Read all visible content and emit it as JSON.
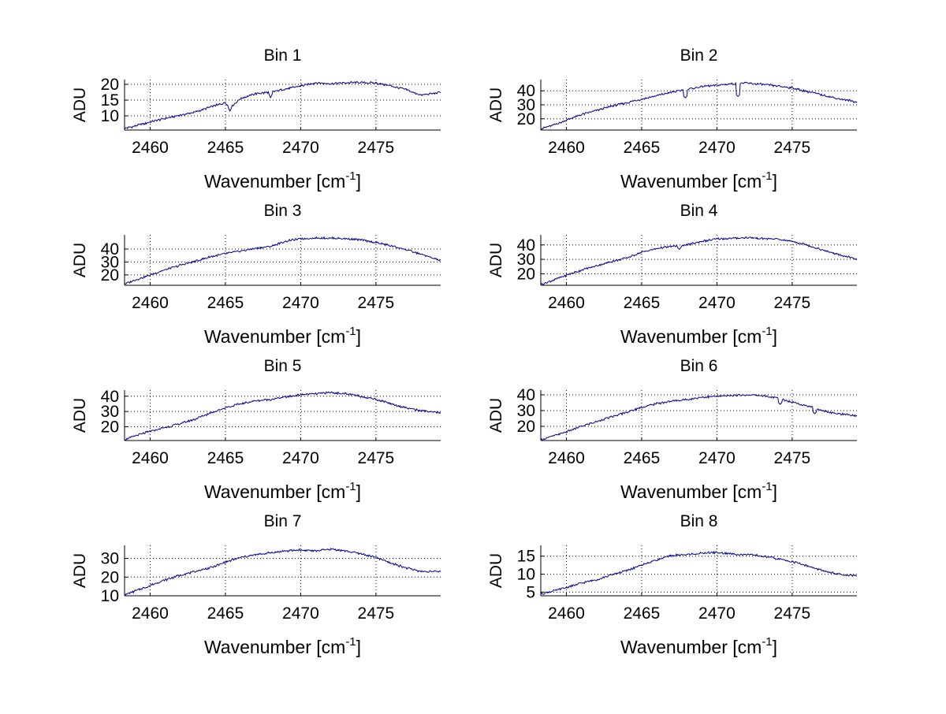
{
  "figure": {
    "background": "#ffffff",
    "line_color": "#00008b",
    "grid_color": "#000000"
  },
  "chart_data": [
    {
      "type": "line",
      "title": "Bin 1",
      "xlabel": "Wavenumber [cm",
      "xlabel_sup": "-1",
      "xlabel_end": "]",
      "ylabel": "ADU",
      "xlim": [
        2458.3,
        2479.3
      ],
      "ylim": [
        5.5,
        21.5
      ],
      "xticks": [
        2460,
        2465,
        2470,
        2475
      ],
      "yticks": [
        10,
        15,
        20
      ],
      "grid": true,
      "series": [
        {
          "name": "Bin 1",
          "x": [
            2458.3,
            2459,
            2460,
            2461,
            2462,
            2463,
            2464,
            2465,
            2465.3,
            2466,
            2467,
            2468,
            2469,
            2470,
            2471,
            2472,
            2473,
            2474,
            2475,
            2476,
            2477,
            2478,
            2479.3
          ],
          "y": [
            6,
            6.8,
            8,
            9.2,
            10.2,
            11.2,
            12.8,
            14.2,
            12.5,
            15.5,
            17,
            17.5,
            18.5,
            19.5,
            20.5,
            20.2,
            20.5,
            20.6,
            20.4,
            19.5,
            18.3,
            16.5,
            17.5
          ]
        }
      ],
      "dips": [
        [
          2465.3,
          11.5
        ],
        [
          2468,
          15.8
        ]
      ]
    },
    {
      "type": "line",
      "title": "Bin 2",
      "xlabel": "Wavenumber [cm",
      "xlabel_sup": "-1",
      "xlabel_end": "]",
      "ylabel": "ADU",
      "xlim": [
        2458.3,
        2479.3
      ],
      "ylim": [
        12,
        48
      ],
      "xticks": [
        2460,
        2465,
        2470,
        2475
      ],
      "yticks": [
        20,
        30,
        40
      ],
      "grid": true,
      "series": [
        {
          "name": "Bin 2",
          "x": [
            2458.3,
            2459,
            2460,
            2461,
            2462,
            2463,
            2464,
            2465,
            2466,
            2467,
            2467.5,
            2468,
            2469,
            2470,
            2471,
            2472,
            2473,
            2474,
            2475,
            2476,
            2477,
            2478,
            2479.3
          ],
          "y": [
            13,
            15,
            19,
            23,
            26,
            29,
            31.5,
            34,
            36.5,
            39,
            40,
            41,
            43,
            44,
            45,
            45.5,
            44.5,
            43.5,
            42,
            39.5,
            37,
            34.5,
            32
          ]
        }
      ],
      "dips": [
        [
          2467.9,
          35
        ],
        [
          2471.4,
          36
        ]
      ]
    },
    {
      "type": "line",
      "title": "Bin 3",
      "xlabel": "Wavenumber [cm",
      "xlabel_sup": "-1",
      "xlabel_end": "]",
      "ylabel": "ADU",
      "xlim": [
        2458.3,
        2479.3
      ],
      "ylim": [
        12,
        51
      ],
      "xticks": [
        2460,
        2465,
        2470,
        2475
      ],
      "yticks": [
        20,
        30,
        40
      ],
      "grid": true,
      "series": [
        {
          "name": "Bin 3",
          "x": [
            2458.3,
            2459,
            2460,
            2461,
            2462,
            2463,
            2464,
            2465,
            2466,
            2467,
            2468,
            2469,
            2470,
            2471,
            2472,
            2473,
            2474,
            2475,
            2476,
            2477,
            2478,
            2479.3
          ],
          "y": [
            13,
            16,
            20,
            24,
            27.5,
            30.5,
            34,
            36.5,
            38.5,
            40.5,
            42,
            46,
            48,
            48.5,
            48.5,
            48,
            47,
            45,
            42.5,
            39.5,
            36,
            31
          ]
        }
      ],
      "dips": []
    },
    {
      "type": "line",
      "title": "Bin 4",
      "xlabel": "Wavenumber [cm",
      "xlabel_sup": "-1",
      "xlabel_end": "]",
      "ylabel": "ADU",
      "xlim": [
        2458.3,
        2479.3
      ],
      "ylim": [
        12,
        47
      ],
      "xticks": [
        2460,
        2465,
        2470,
        2475
      ],
      "yticks": [
        20,
        30,
        40
      ],
      "grid": true,
      "series": [
        {
          "name": "Bin 4",
          "x": [
            2458.3,
            2459,
            2460,
            2461,
            2462,
            2463,
            2464,
            2465,
            2466,
            2467,
            2468,
            2469,
            2470,
            2471,
            2472,
            2473,
            2474,
            2475,
            2476,
            2477,
            2478,
            2479.3
          ],
          "y": [
            12.5,
            15,
            19,
            22.5,
            25.5,
            28.5,
            31,
            35,
            37.5,
            39,
            40,
            42.5,
            44,
            44.5,
            45,
            44.5,
            44,
            42.5,
            40,
            36.5,
            33.5,
            30
          ]
        }
      ],
      "dips": [
        [
          2467.5,
          37
        ]
      ]
    },
    {
      "type": "line",
      "title": "Bin 5",
      "xlabel": "Wavenumber [cm",
      "xlabel_sup": "-1",
      "xlabel_end": "]",
      "ylabel": "ADU",
      "xlim": [
        2458.3,
        2479.3
      ],
      "ylim": [
        11,
        44
      ],
      "xticks": [
        2460,
        2465,
        2470,
        2475
      ],
      "yticks": [
        20,
        30,
        40
      ],
      "grid": true,
      "series": [
        {
          "name": "Bin 5",
          "x": [
            2458.3,
            2459,
            2460,
            2461,
            2462,
            2463,
            2464,
            2465,
            2466,
            2467,
            2468,
            2469,
            2470,
            2471,
            2472,
            2473,
            2474,
            2475,
            2476,
            2477,
            2478,
            2479.3
          ],
          "y": [
            11.5,
            14,
            17,
            19.5,
            22,
            25,
            29,
            32.5,
            35,
            37,
            38,
            39.5,
            41,
            41.5,
            42.5,
            41.5,
            40,
            38,
            35,
            32.5,
            30.5,
            29
          ]
        }
      ],
      "dips": []
    },
    {
      "type": "line",
      "title": "Bin 6",
      "xlabel": "Wavenumber [cm",
      "xlabel_sup": "-1",
      "xlabel_end": "]",
      "ylabel": "ADU",
      "xlim": [
        2458.3,
        2479.3
      ],
      "ylim": [
        11,
        43
      ],
      "xticks": [
        2460,
        2465,
        2470,
        2475
      ],
      "yticks": [
        20,
        30,
        40
      ],
      "grid": true,
      "series": [
        {
          "name": "Bin 6",
          "x": [
            2458.3,
            2459,
            2460,
            2461,
            2462,
            2463,
            2464,
            2465,
            2466,
            2467,
            2468,
            2469,
            2470,
            2471,
            2472,
            2473,
            2474,
            2475,
            2476,
            2477,
            2478,
            2479.3
          ],
          "y": [
            11.5,
            13.5,
            16.5,
            20,
            23,
            26,
            29,
            32,
            34.5,
            36,
            37,
            38.5,
            39,
            39.5,
            40,
            39.5,
            38,
            35.5,
            33,
            30,
            28,
            26.5
          ]
        }
      ],
      "dips": [
        [
          2474.2,
          34
        ],
        [
          2476.5,
          28
        ]
      ]
    },
    {
      "type": "line",
      "title": "Bin 7",
      "xlabel": "Wavenumber [cm",
      "xlabel_sup": "-1",
      "xlabel_end": "]",
      "ylabel": "ADU",
      "xlim": [
        2458.3,
        2479.3
      ],
      "ylim": [
        10,
        37
      ],
      "xticks": [
        2460,
        2465,
        2470,
        2475
      ],
      "yticks": [
        10,
        20,
        30
      ],
      "grid": true,
      "series": [
        {
          "name": "Bin 7",
          "x": [
            2458.3,
            2459,
            2460,
            2461,
            2462,
            2463,
            2464,
            2465,
            2466,
            2467,
            2468,
            2469,
            2470,
            2471,
            2472,
            2473,
            2474,
            2475,
            2476,
            2477,
            2478,
            2479.3
          ],
          "y": [
            10.5,
            12.5,
            15.5,
            18.5,
            21,
            23,
            25,
            28,
            30.5,
            32,
            33,
            34,
            34.5,
            34,
            35,
            34,
            32.5,
            30.5,
            27.5,
            25,
            23,
            23
          ]
        }
      ],
      "dips": []
    },
    {
      "type": "line",
      "title": "Bin 8",
      "xlabel": "Wavenumber [cm",
      "xlabel_sup": "-1",
      "xlabel_end": "]",
      "ylabel": "ADU",
      "xlim": [
        2458.3,
        2479.3
      ],
      "ylim": [
        4,
        18
      ],
      "xticks": [
        2460,
        2465,
        2470,
        2475
      ],
      "yticks": [
        5,
        10,
        15
      ],
      "grid": true,
      "series": [
        {
          "name": "Bin 8",
          "x": [
            2458.3,
            2459,
            2460,
            2461,
            2462,
            2463,
            2464,
            2465,
            2466,
            2467,
            2468,
            2469,
            2470,
            2471,
            2472,
            2473,
            2474,
            2475,
            2476,
            2477,
            2478,
            2479.3
          ],
          "y": [
            4.5,
            5.2,
            6.3,
            7.5,
            8.5,
            9.8,
            11,
            12.5,
            14,
            15.2,
            15.4,
            15.8,
            16,
            15.6,
            15.4,
            15,
            14.3,
            13.5,
            12.3,
            11,
            10,
            9.5
          ]
        }
      ],
      "dips": []
    }
  ]
}
